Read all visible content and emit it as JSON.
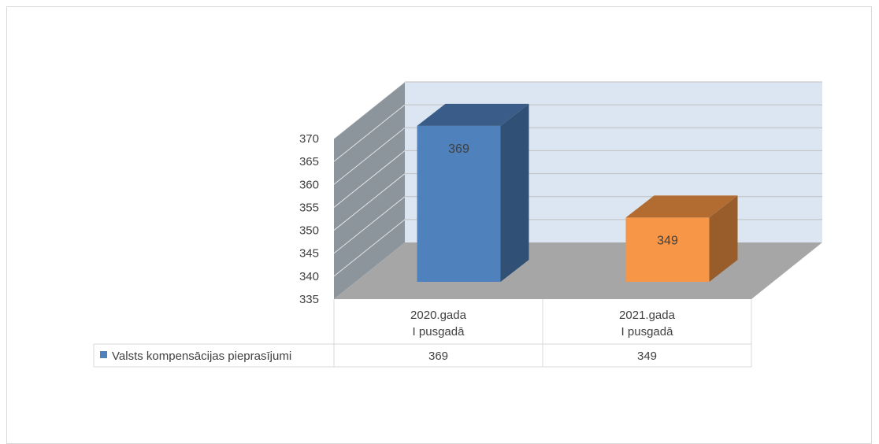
{
  "chart_data": {
    "type": "bar",
    "categories": [
      [
        "2020.gada",
        "I pusgadā"
      ],
      [
        "2021.gada",
        "I pusgadā"
      ]
    ],
    "series": [
      {
        "name": "Valsts kompensācijas pieprasījumi",
        "values": [
          369,
          349
        ],
        "colors": [
          "#4f81bd",
          "#f79646"
        ]
      }
    ],
    "ylim": [
      335,
      370
    ],
    "yticks": [
      335,
      340,
      345,
      350,
      355,
      360,
      365,
      370
    ],
    "title": "",
    "xlabel": "",
    "ylabel": "",
    "grid": true,
    "legend": "data-table",
    "data_labels": true,
    "three_d": true
  }
}
